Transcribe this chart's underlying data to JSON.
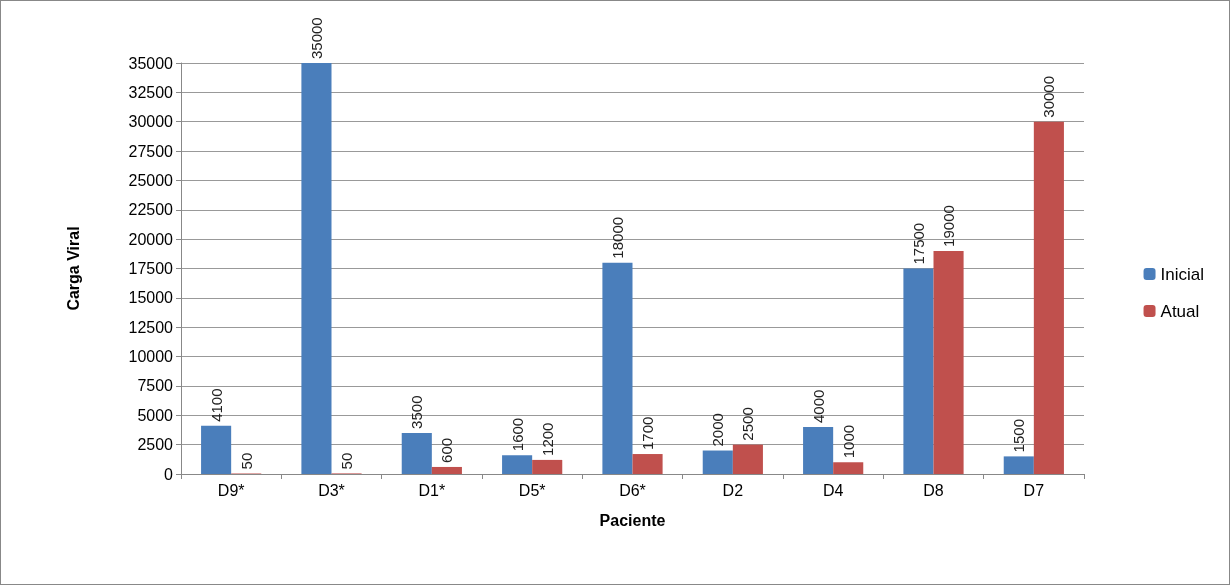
{
  "chart_data": {
    "type": "bar",
    "xlabel": "Paciente",
    "ylabel": "Carga Viral",
    "categories": [
      "D9*",
      "D3*",
      "D1*",
      "D5*",
      "D6*",
      "D2",
      "D4",
      "D8",
      "D7"
    ],
    "series": [
      {
        "name": "Inicial",
        "color": "#4a7ebb",
        "values": [
          4100,
          35000,
          3500,
          1600,
          18000,
          2000,
          4000,
          17500,
          1500
        ]
      },
      {
        "name": "Atual",
        "color": "#c0504d",
        "values": [
          50,
          50,
          600,
          1200,
          1700,
          2500,
          1000,
          19000,
          30000
        ]
      }
    ],
    "ylim": [
      0,
      35000
    ],
    "yticks": [
      0,
      2500,
      5000,
      7500,
      10000,
      12500,
      15000,
      17500,
      20000,
      22500,
      25000,
      27500,
      30000,
      32500,
      35000
    ],
    "grid": "y",
    "legend": "right",
    "data_labels": true
  }
}
